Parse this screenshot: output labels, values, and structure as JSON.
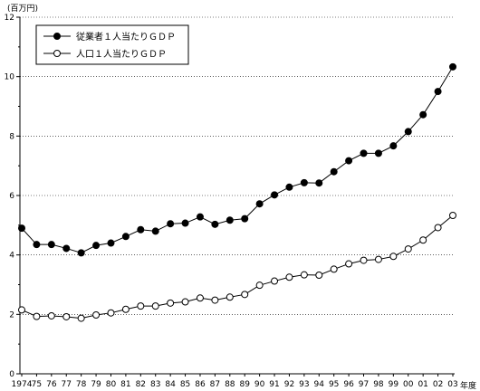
{
  "chart_data": {
    "type": "line",
    "y_unit_label": "(百万円)",
    "x_unit_label": "年度",
    "ylim": [
      0,
      12
    ],
    "y_ticks": [
      "0",
      "2",
      "4",
      "6",
      "8",
      "10",
      "12"
    ],
    "grid": "horizontal-dotted",
    "legend_position": "top-left",
    "x": [
      "1974",
      "75",
      "76",
      "77",
      "78",
      "79",
      "80",
      "81",
      "82",
      "83",
      "84",
      "85",
      "86",
      "87",
      "88",
      "89",
      "90",
      "91",
      "92",
      "93",
      "94",
      "95",
      "96",
      "97",
      "98",
      "99",
      "00",
      "01",
      "02",
      "03"
    ],
    "series": [
      {
        "name": "従業者１人当たりＧＤＰ",
        "marker": "filled-circle",
        "values": [
          4.9,
          4.35,
          4.35,
          4.22,
          4.07,
          4.32,
          4.4,
          4.62,
          4.85,
          4.8,
          5.05,
          5.07,
          5.28,
          5.03,
          5.17,
          5.22,
          5.72,
          6.02,
          6.28,
          6.43,
          6.42,
          6.8,
          7.17,
          7.42,
          7.42,
          7.67,
          8.15,
          8.72,
          9.5,
          10.33
        ]
      },
      {
        "name": "人口１人当たりＧＤＰ",
        "marker": "open-circle",
        "values": [
          2.15,
          1.93,
          1.95,
          1.92,
          1.87,
          1.98,
          2.05,
          2.17,
          2.28,
          2.28,
          2.38,
          2.42,
          2.55,
          2.48,
          2.58,
          2.67,
          2.98,
          3.12,
          3.25,
          3.33,
          3.32,
          3.52,
          3.7,
          3.82,
          3.85,
          3.95,
          4.2,
          4.5,
          4.92,
          5.33
        ]
      }
    ]
  }
}
